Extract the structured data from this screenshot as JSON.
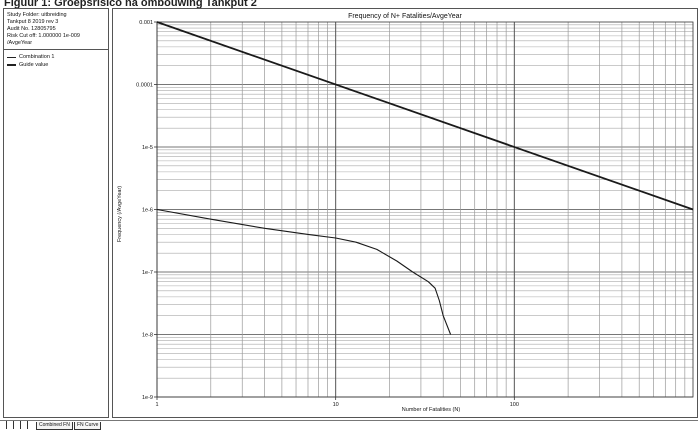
{
  "figure_title": "Figuur 1: Groepsrisico na ombouwing Tankput 2",
  "side_panel": {
    "info_lines": [
      "Study Folder: uitbreiding",
      "Tankput 8 2019 rev 3",
      "Audit No. 12805795",
      "Risk Cut off: 1.000000 1e-009",
      "/AvgeYear"
    ],
    "legend": [
      {
        "label": "Combination 1",
        "style": "thin"
      },
      {
        "label": "Guide value",
        "style": "thick"
      }
    ]
  },
  "tabs": [
    "Combined FN",
    "FN Curve"
  ],
  "chart_data": {
    "type": "line",
    "title": "Frequency of N+ Fatalities/AvgeYear",
    "xlabel": "Number of Fatalities (N)",
    "ylabel": "Frequency (/AvgeYear)",
    "x_scale": "log",
    "y_scale": "log",
    "xlim": [
      1,
      1000
    ],
    "ylim": [
      1e-09,
      0.001
    ],
    "x_tick_labels": [
      {
        "value": 1,
        "label": "1"
      },
      {
        "value": 10,
        "label": "10"
      },
      {
        "value": 100,
        "label": "100"
      }
    ],
    "y_tick_labels": [
      {
        "value": 0.001,
        "label": "0.001"
      },
      {
        "value": 0.0001,
        "label": "0.0001"
      },
      {
        "value": 1e-05,
        "label": "1e-5"
      },
      {
        "value": 1e-06,
        "label": "1e-6"
      },
      {
        "value": 1e-07,
        "label": "1e-7"
      },
      {
        "value": 1e-08,
        "label": "1e-8"
      },
      {
        "value": 1e-09,
        "label": "1e-9"
      }
    ],
    "grid": true,
    "series": [
      {
        "name": "Guide value",
        "color": "#1a1a1a",
        "style": "thick",
        "points": [
          [
            1,
            0.001
          ],
          [
            1000,
            1e-06
          ]
        ]
      },
      {
        "name": "Combination 1",
        "color": "#1a1a1a",
        "style": "thin",
        "points": [
          [
            1,
            1e-06
          ],
          [
            2,
            7e-07
          ],
          [
            4,
            5e-07
          ],
          [
            7,
            4e-07
          ],
          [
            10,
            3.5e-07
          ],
          [
            13,
            3e-07
          ],
          [
            17,
            2.3e-07
          ],
          [
            22,
            1.5e-07
          ],
          [
            27,
            1e-07
          ],
          [
            33,
            7e-08
          ],
          [
            36,
            5.5e-08
          ],
          [
            38,
            3.5e-08
          ],
          [
            40,
            2e-08
          ],
          [
            44,
            1e-08
          ]
        ]
      }
    ]
  }
}
